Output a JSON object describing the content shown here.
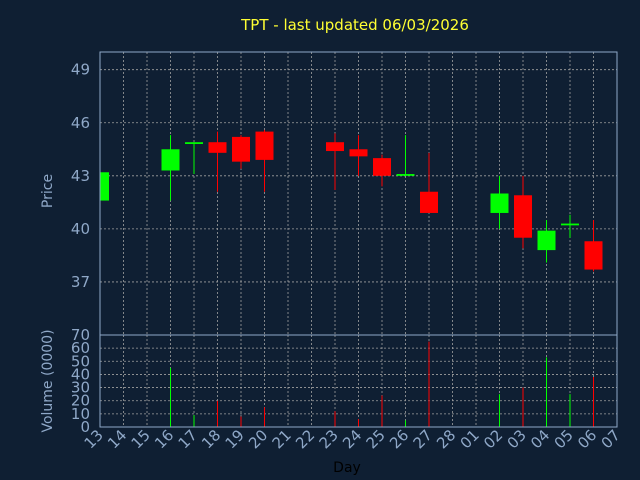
{
  "chart_data": {
    "type": "candlestick",
    "title": "TPT - last updated 06/03/2026",
    "xlabel": "Day",
    "x_tick_labels": [
      "13",
      "14",
      "15",
      "16",
      "17",
      "18",
      "19",
      "20",
      "21",
      "22",
      "23",
      "24",
      "25",
      "26",
      "27",
      "28",
      "01",
      "02",
      "03",
      "04",
      "05",
      "06",
      "07"
    ],
    "price": {
      "ylabel": "Price",
      "ylim": [
        34,
        50
      ],
      "yticks": [
        37,
        40,
        43,
        46,
        49
      ],
      "grid": true,
      "candles": [
        {
          "x": "13",
          "open": 41.6,
          "high": 43.3,
          "low": 41.6,
          "close": 43.2
        },
        {
          "x": "16",
          "open": 43.3,
          "high": 45.3,
          "low": 41.6,
          "close": 44.5
        },
        {
          "x": "17",
          "open": 44.8,
          "high": 44.9,
          "low": 43.1,
          "close": 44.9
        },
        {
          "x": "18",
          "open": 44.9,
          "high": 45.5,
          "low": 42.1,
          "close": 44.3
        },
        {
          "x": "19",
          "open": 45.2,
          "high": 45.3,
          "low": 43.4,
          "close": 43.8
        },
        {
          "x": "20",
          "open": 45.5,
          "high": 45.6,
          "low": 42.1,
          "close": 43.9
        },
        {
          "x": "23",
          "open": 44.9,
          "high": 45.4,
          "low": 42.2,
          "close": 44.4
        },
        {
          "x": "24",
          "open": 44.5,
          "high": 45.3,
          "low": 43.0,
          "close": 44.1
        },
        {
          "x": "25",
          "open": 44.0,
          "high": 44.2,
          "low": 42.4,
          "close": 43.0
        },
        {
          "x": "26",
          "open": 43.0,
          "high": 45.3,
          "low": 43.0,
          "close": 43.1
        },
        {
          "x": "27",
          "open": 42.1,
          "high": 44.3,
          "low": 40.9,
          "close": 40.9
        },
        {
          "x": "02",
          "open": 40.9,
          "high": 43.0,
          "low": 40.0,
          "close": 42.0
        },
        {
          "x": "03",
          "open": 41.9,
          "high": 43.0,
          "low": 38.9,
          "close": 39.5
        },
        {
          "x": "04",
          "open": 38.8,
          "high": 40.5,
          "low": 38.1,
          "close": 39.9
        },
        {
          "x": "05",
          "open": 40.2,
          "high": 40.8,
          "low": 39.5,
          "close": 40.3
        },
        {
          "x": "06",
          "open": 39.3,
          "high": 40.5,
          "low": 37.6,
          "close": 37.7
        }
      ]
    },
    "volume": {
      "ylabel": "Volume (0000)",
      "ylim": [
        0,
        70
      ],
      "yticks": [
        0,
        10,
        20,
        30,
        40,
        50,
        60,
        70
      ],
      "grid": true,
      "bars": [
        {
          "x": "16",
          "value": 45
        },
        {
          "x": "17",
          "value": 9
        },
        {
          "x": "18",
          "value": 20
        },
        {
          "x": "19",
          "value": 8
        },
        {
          "x": "20",
          "value": 15
        },
        {
          "x": "23",
          "value": 12
        },
        {
          "x": "24",
          "value": 6
        },
        {
          "x": "25",
          "value": 24
        },
        {
          "x": "26",
          "value": 5
        },
        {
          "x": "27",
          "value": 65
        },
        {
          "x": "02",
          "value": 25
        },
        {
          "x": "03",
          "value": 30
        },
        {
          "x": "04",
          "value": 53
        },
        {
          "x": "05",
          "value": 25
        },
        {
          "x": "06",
          "value": 38
        }
      ]
    },
    "colors": {
      "background": "#0f1f33",
      "plot_background": "#0f1f33",
      "grid": "#a0a0a0",
      "frame": "#8fa8c8",
      "up": "#00ff00",
      "down": "#ff0000",
      "title": "#ffff33",
      "tick": "#8fa8c8",
      "xlabel": "#000000"
    }
  }
}
